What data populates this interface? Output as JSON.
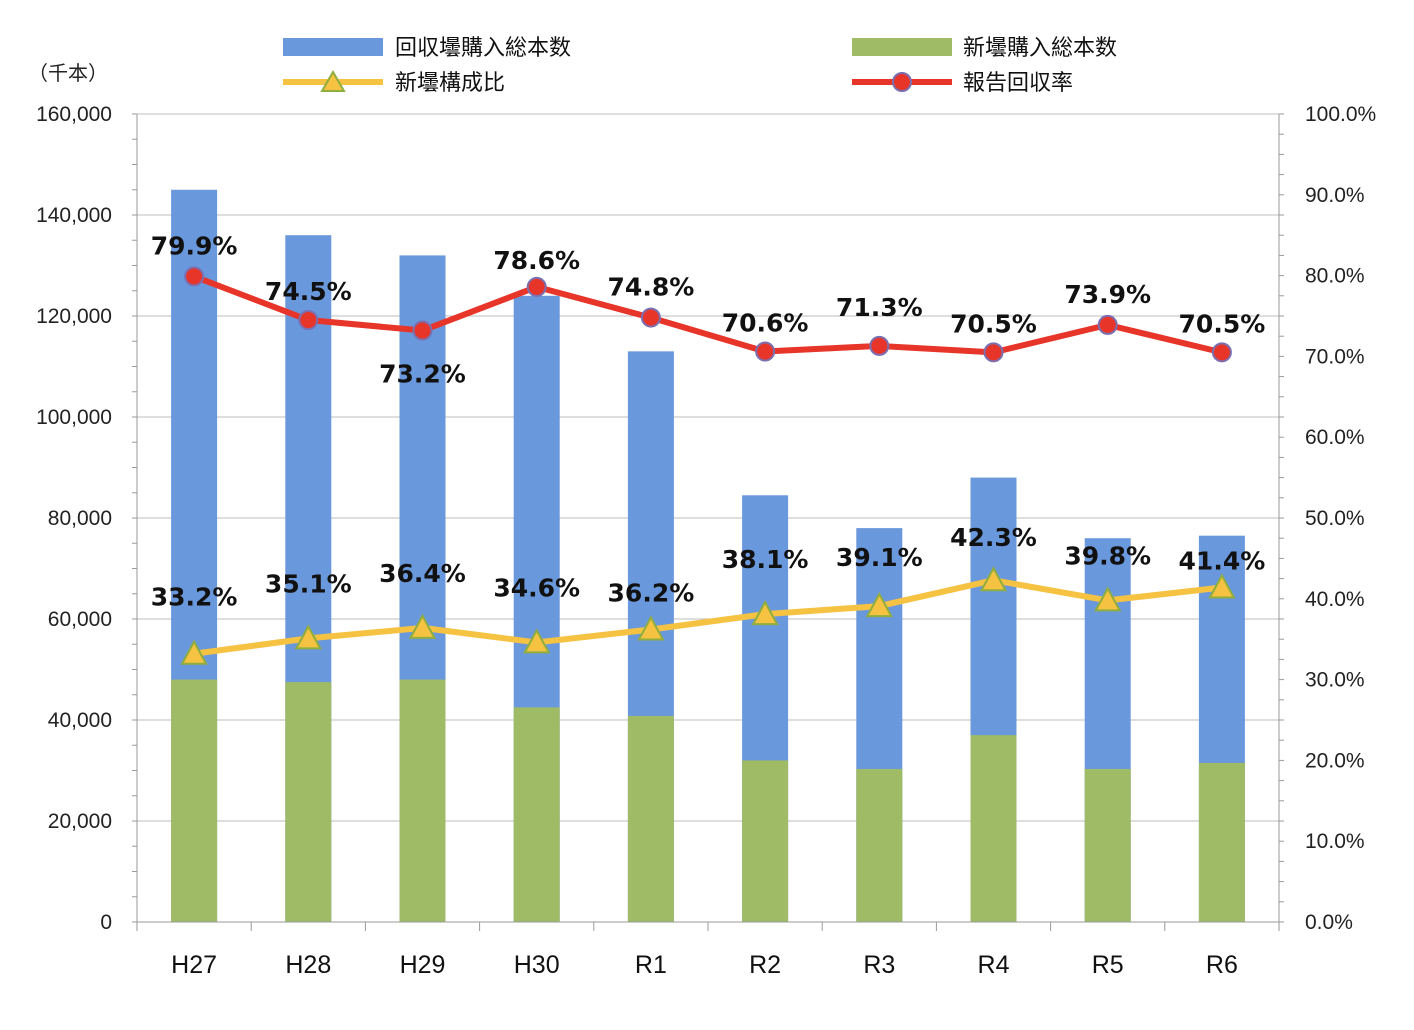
{
  "chart_data": {
    "type": "bar+line",
    "y_unit_label": "（千本）",
    "categories": [
      "H27",
      "H28",
      "H29",
      "H30",
      "R1",
      "R2",
      "R3",
      "R4",
      "R5",
      "R6"
    ],
    "left_axis": {
      "min": 0,
      "max": 160000,
      "step": 20000,
      "ticks": [
        "0",
        "20,000",
        "40,000",
        "60,000",
        "80,000",
        "100,000",
        "120,000",
        "140,000",
        "160,000"
      ]
    },
    "right_axis": {
      "min": 0,
      "max": 100,
      "step": 10,
      "ticks": [
        "0.0%",
        "10.0%",
        "20.0%",
        "30.0%",
        "40.0%",
        "50.0%",
        "60.0%",
        "70.0%",
        "80.0%",
        "90.0%",
        "100.0%"
      ]
    },
    "grid": true,
    "legend_position": "top",
    "series": [
      {
        "name": "回収壜購入総本数",
        "type": "bar",
        "axis": "left",
        "color": "#6a98dc",
        "values": [
          145000,
          136000,
          132000,
          124000,
          113000,
          84500,
          78000,
          88000,
          76000,
          76500
        ]
      },
      {
        "name": "新壜購入総本数",
        "type": "bar",
        "axis": "left",
        "color": "#9fbb65",
        "values": [
          48000,
          47500,
          48000,
          42500,
          40800,
          32000,
          30300,
          37000,
          30300,
          31500
        ]
      },
      {
        "name": "新壜構成比",
        "type": "line",
        "axis": "right",
        "color": "#f5c242",
        "marker": "triangle",
        "values": [
          33.2,
          35.1,
          36.4,
          34.6,
          36.2,
          38.1,
          39.1,
          42.3,
          39.8,
          41.4
        ],
        "labels": [
          "33.2%",
          "35.1%",
          "36.4%",
          "34.6%",
          "36.2%",
          "38.1%",
          "39.1%",
          "42.3%",
          "39.8%",
          "41.4%"
        ]
      },
      {
        "name": "報告回収率",
        "type": "line",
        "axis": "right",
        "color": "#e8352a",
        "marker": "circle",
        "values": [
          79.9,
          74.5,
          73.2,
          78.6,
          74.8,
          70.6,
          71.3,
          70.5,
          73.9,
          70.5
        ],
        "labels": [
          "79.9%",
          "74.5%",
          "73.2%",
          "78.6%",
          "74.8%",
          "70.6%",
          "71.3%",
          "70.5%",
          "73.9%",
          "70.5%"
        ]
      }
    ]
  }
}
